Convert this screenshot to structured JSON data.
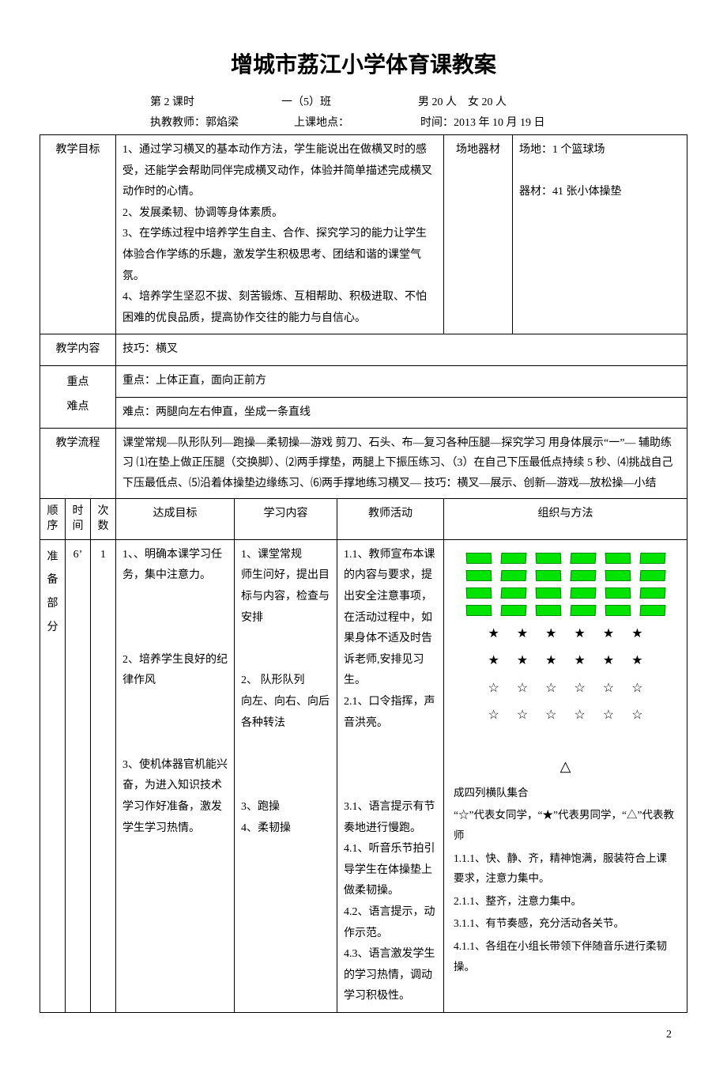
{
  "title": "增城市荔江小学体育课教案",
  "meta1": {
    "period": "第 2 课时",
    "class": "一（5）班",
    "students": "男 20 人　女 20 人"
  },
  "meta2": {
    "teacher": "执教教师：郭焰梁",
    "location": "上课地点：",
    "time": "时间：2013 年 10 月 19 日"
  },
  "rows": {
    "goal_label": "教学目标",
    "goal_text": "1、通过学习横叉的基本动作方法，学生能说出在做横叉时的感受，还能学会帮助同伴完成横叉动作，体验并简单描述完成横叉动作时的心情。\n2、发展柔韧、协调等身体素质。\n3、在学练过程中培养学生自主、合作、探究学习的能力让学生体验合作学练的乐趣，激发学生积极思考、团结和谐的课堂气氛。\n4、培养学生坚忍不拔、刻苦锻炼、互相帮助、积极进取、不怕困难的优良品质，提高协作交往的能力与自信心。",
    "venue_label": "场地器材",
    "venue_text": "场地：1 个篮球场\n\n器材：41 张小体操垫",
    "content_label": "教学内容",
    "content_text": "技巧：横叉",
    "kd_label1": "重点",
    "kd_label2": "难点",
    "kd_text1": "重点：上体正直，面向正前方",
    "kd_text2": "难点：两腿向左右伸直，坐成一条直线",
    "flow_label": "教学流程",
    "flow_text": "课堂常规—队形队列—跑操—柔韧操—游戏 剪刀、石头、布—复习各种压腿—探究学习 用身体展示“一”— 辅助练习 ⑴在垫上做正压腿（交换脚）、⑵两手撑垫，两腿上下振压练习、（3）在自己下压最低点持续 5 秒、⑷挑战自己下压最低点、⑸沿着体操垫边缘练习、⑹两手撑地练习横叉— 技巧：横叉—展示、创新—游戏—放松操—小结"
  },
  "header2": {
    "c1": "顺序",
    "c2": "时间",
    "c3": "次数",
    "c4": "达成目标",
    "c5": "学习内容",
    "c6": "教师活动",
    "c7": "组织与方法"
  },
  "prep": {
    "section": "准备部分",
    "time": "6’",
    "count": "1",
    "goals": "1、、明确本课学习任务，集中注意力。\n\n\n\n2、培养学生良好的纪律作风\n\n\n\n3、使机体器官机能兴奋，为进入知识技术学习作好准备，激发学生学习热情。",
    "content": "1、课堂常规\n师生问好，提出目标与内容，检查与安排\n\n\n2、 队形队列\n向左、向右、向后各种转法\n\n\n\n3、跑操\n4、柔韧操",
    "teacher": "1.1、教师宣布本课的内容与要求，提出安全注意事项，在活动过程中，如果身体不适及时告诉老师,安排见习生。\n2.1、口令指挥，声音洪亮。\n\n\n\n3.1、语言提示有节奏地进行慢跑。\n4.1、听音乐节拍引导学生在体操垫上做柔韧操。\n4.2、语言提示，动作示范。\n4.3、语言激发学生的学习热情，调动学习积极性。"
  },
  "formation": {
    "mat_rows": 4,
    "mats_per_row": 6,
    "mat_color": "#00e400",
    "mat_border": "#008800",
    "star_rows": [
      [
        "★",
        "★",
        "★",
        "★",
        "★",
        "★"
      ],
      [
        "★",
        "★",
        "★",
        "★",
        "★",
        "★"
      ],
      [
        "☆",
        "☆",
        "☆",
        "☆",
        "☆",
        "☆"
      ],
      [
        "☆",
        "☆",
        "☆",
        "☆",
        "☆",
        "☆"
      ]
    ],
    "triangle": "△",
    "caption": "成四列横队集合",
    "legend": "“☆”代表女同学，“★”代表男同学，“△”代表教师",
    "notes": [
      "1.1.1、快、静、齐，精神饱满，服装符合上课要求，注意力集中。",
      "2.1.1、整齐，注意力集中。",
      "3.1.1、有节奏感，充分活动各关节。",
      "4.1.1、各组在小组长带领下伴随音乐进行柔韧操。"
    ]
  },
  "page": "2"
}
